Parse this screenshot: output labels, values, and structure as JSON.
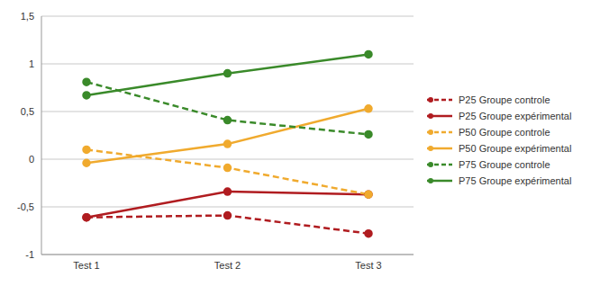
{
  "chart_data": {
    "type": "line",
    "categories": [
      "Test 1",
      "Test 2",
      "Test 3"
    ],
    "series": [
      {
        "name": "P25 Groupe controle",
        "color": "#b01c20",
        "line_style": "dashed",
        "marker": "circle",
        "values": [
          -0.61,
          -0.59,
          -0.78
        ]
      },
      {
        "name": "P25 Groupe expérimental",
        "color": "#b01c20",
        "line_style": "solid",
        "marker": "circle",
        "values": [
          -0.61,
          -0.34,
          -0.37
        ]
      },
      {
        "name": "P50 Groupe controle",
        "color": "#f0aa2e",
        "line_style": "dashed",
        "marker": "circle",
        "values": [
          0.1,
          -0.09,
          -0.37
        ]
      },
      {
        "name": "P50 Groupe expérimental",
        "color": "#f0aa2e",
        "line_style": "solid",
        "marker": "circle",
        "values": [
          -0.04,
          0.16,
          0.53
        ]
      },
      {
        "name": "P75 Groupe controle",
        "color": "#3a8a2a",
        "line_style": "dashed",
        "marker": "circle",
        "values": [
          0.81,
          0.41,
          0.26
        ]
      },
      {
        "name": "P75 Groupe expérimental",
        "color": "#3a8a2a",
        "line_style": "solid",
        "marker": "circle",
        "values": [
          0.67,
          0.9,
          1.1
        ]
      }
    ],
    "ylim": [
      -1,
      1.5
    ],
    "yticks": [
      -1,
      {
        "value": -0.5,
        "label": "-0,5"
      },
      0,
      {
        "value": 0.5,
        "label": "0,5"
      },
      1,
      {
        "value": 1.5,
        "label": "1,5"
      }
    ],
    "grid": true,
    "legend": "right"
  }
}
